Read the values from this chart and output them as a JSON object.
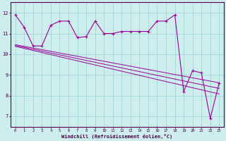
{
  "xlabel": "Windchill (Refroidissement éolien,°C)",
  "hours": [
    0,
    1,
    2,
    3,
    4,
    5,
    6,
    7,
    8,
    9,
    10,
    11,
    12,
    13,
    14,
    15,
    16,
    17,
    18,
    19,
    20,
    21,
    22,
    23
  ],
  "windchill": [
    11.9,
    11.3,
    10.4,
    10.4,
    11.4,
    11.6,
    11.6,
    10.8,
    10.85,
    11.6,
    11.0,
    11.0,
    11.1,
    11.1,
    11.1,
    11.1,
    11.6,
    11.6,
    11.9,
    8.2,
    9.2,
    9.1,
    6.9,
    8.6
  ],
  "tmin_line": [
    10.38,
    10.28,
    10.18,
    10.08,
    9.98,
    9.88,
    9.78,
    9.68,
    9.58,
    9.48,
    9.38,
    9.28,
    9.18,
    9.08,
    8.98,
    8.88,
    8.78,
    8.68,
    8.58,
    8.48,
    8.38,
    8.28,
    8.18,
    8.08
  ],
  "tmid_line": [
    10.42,
    10.33,
    10.24,
    10.15,
    10.06,
    9.97,
    9.88,
    9.79,
    9.7,
    9.61,
    9.52,
    9.43,
    9.34,
    9.25,
    9.16,
    9.07,
    8.98,
    8.89,
    8.8,
    8.71,
    8.62,
    8.53,
    8.44,
    8.35
  ],
  "tmax_line": [
    10.46,
    10.38,
    10.3,
    10.22,
    10.14,
    10.06,
    9.98,
    9.9,
    9.82,
    9.74,
    9.66,
    9.58,
    9.5,
    9.42,
    9.34,
    9.26,
    9.18,
    9.1,
    9.02,
    8.94,
    8.86,
    8.78,
    8.7,
    8.62
  ],
  "line_color": "#990099",
  "bg_color": "#ceeeed",
  "grid_color": "#a8d8d8",
  "ylim": [
    6.5,
    12.5
  ],
  "yticks": [
    7,
    8,
    9,
    10,
    11,
    12
  ],
  "xlim": [
    -0.5,
    23.5
  ]
}
